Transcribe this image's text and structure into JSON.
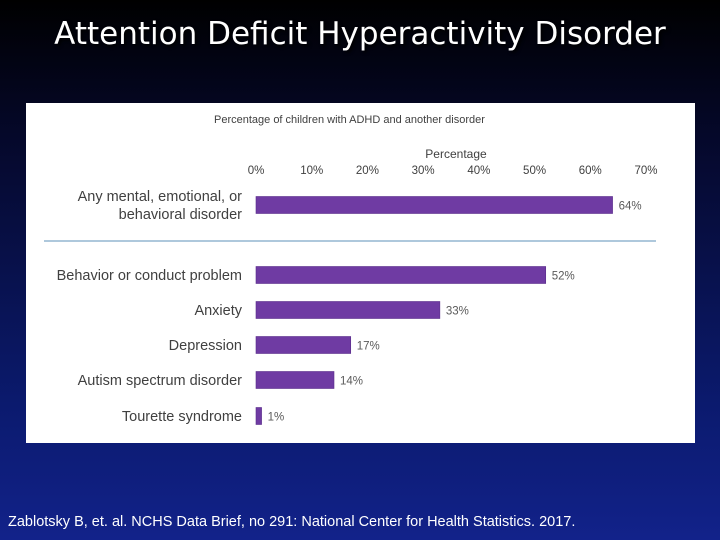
{
  "slide": {
    "title": "Attention Deficit Hyperactivity Disorder",
    "citation": "Zablotsky B, et. al. NCHS Data Brief, no 291: National Center for Health Statistics. 2017."
  },
  "colors": {
    "bar": "#6f3ba3",
    "bar_outline": "#5a2d8a",
    "divider": "#7ea7c8"
  },
  "chart_data": {
    "type": "bar",
    "orientation": "horizontal",
    "title": "Percentage of children with ADHD and another disorder",
    "xlabel": "Percentage",
    "ylabel": "",
    "xlim": [
      0,
      70
    ],
    "x_ticks": [
      "0%",
      "10%",
      "20%",
      "30%",
      "40%",
      "50%",
      "60%",
      "70%"
    ],
    "grid": false,
    "legend": false,
    "categories": [
      "Any mental, emotional, or behavioral disorder",
      "Behavior or conduct problem",
      "Anxiety",
      "Depression",
      "Autism spectrum disorder",
      "Tourette syndrome"
    ],
    "category_lines": [
      [
        "Any mental, emotional, or",
        "behavioral disorder"
      ],
      [
        "Behavior or conduct problem"
      ],
      [
        "Anxiety"
      ],
      [
        "Depression"
      ],
      [
        "Autism spectrum disorder"
      ],
      [
        "Tourette syndrome"
      ]
    ],
    "values": [
      64,
      52,
      33,
      17,
      14,
      1
    ],
    "data_labels": [
      "64%",
      "52%",
      "33%",
      "17%",
      "14%",
      "1%"
    ]
  }
}
